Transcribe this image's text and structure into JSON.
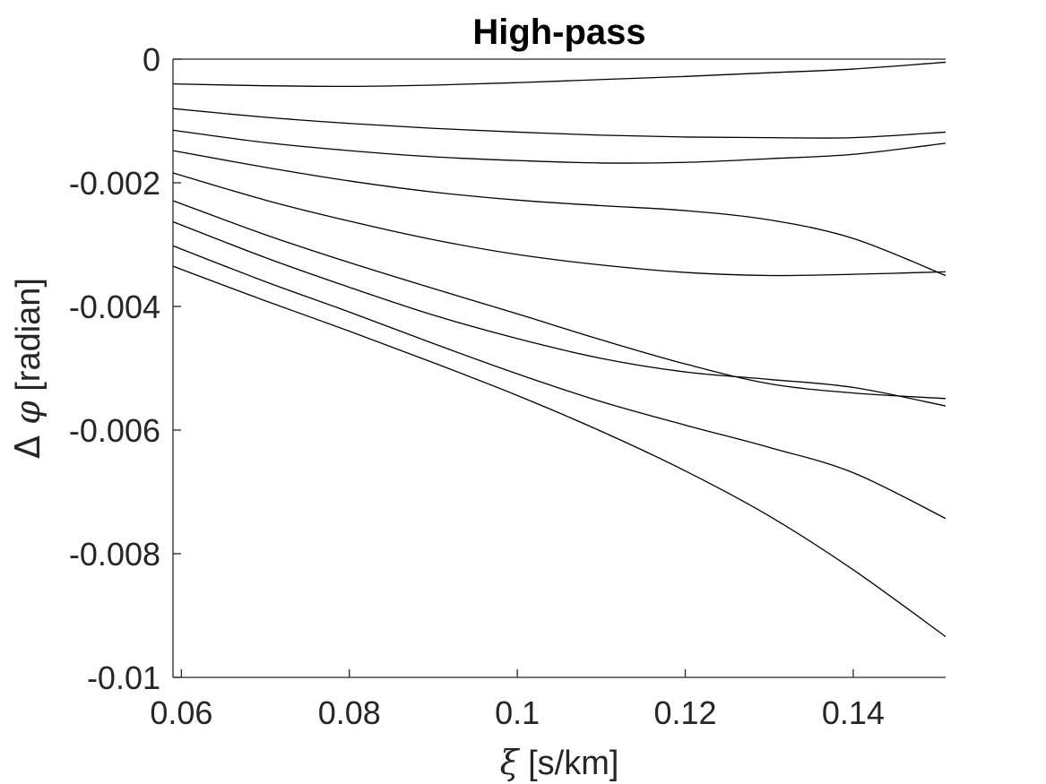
{
  "chart_data": {
    "type": "line",
    "title": "High-pass",
    "xlabel": {
      "symbol": "ξ",
      "unit": " [s/km]"
    },
    "ylabel": {
      "delta": "Δ ",
      "symbol": "φ",
      "unit": " [radian]"
    },
    "xlim": [
      0.059,
      0.151
    ],
    "ylim": [
      -0.01,
      0
    ],
    "xticks": [
      0.06,
      0.08,
      0.1,
      0.12,
      0.14
    ],
    "xtick_labels": [
      "0.06",
      "0.08",
      "0.1",
      "0.12",
      "0.14"
    ],
    "yticks": [
      0,
      -0.002,
      -0.004,
      -0.006,
      -0.008,
      -0.01
    ],
    "ytick_labels": [
      "0",
      "-0.002",
      "-0.004",
      "-0.006",
      "-0.008",
      "-0.01"
    ],
    "grid": false,
    "line_color": "#000000",
    "x": [
      0.059,
      0.07,
      0.08,
      0.09,
      0.1,
      0.11,
      0.12,
      0.13,
      0.14,
      0.151
    ],
    "series": [
      {
        "values": [
          -0.0004,
          -0.00043,
          -0.00044,
          -0.00042,
          -0.00038,
          -0.00033,
          -0.00028,
          -0.00022,
          -0.00016,
          -5e-05
        ]
      },
      {
        "values": [
          -0.0008,
          -0.00094,
          -0.00104,
          -0.00112,
          -0.00118,
          -0.00123,
          -0.00126,
          -0.00127,
          -0.00127,
          -0.00118
        ]
      },
      {
        "values": [
          -0.00115,
          -0.00135,
          -0.00148,
          -0.00158,
          -0.00164,
          -0.00168,
          -0.00167,
          -0.00161,
          -0.00154,
          -0.00136
        ]
      },
      {
        "values": [
          -0.00148,
          -0.00175,
          -0.00197,
          -0.00215,
          -0.00228,
          -0.00237,
          -0.00245,
          -0.0026,
          -0.0029,
          -0.0035
        ]
      },
      {
        "values": [
          -0.00184,
          -0.00228,
          -0.00262,
          -0.00292,
          -0.00316,
          -0.00333,
          -0.00345,
          -0.0035,
          -0.00348,
          -0.00344
        ]
      },
      {
        "values": [
          -0.00229,
          -0.00284,
          -0.00329,
          -0.00371,
          -0.00412,
          -0.00454,
          -0.00493,
          -0.00525,
          -0.0054,
          -0.00549
        ]
      },
      {
        "values": [
          -0.00263,
          -0.00321,
          -0.00369,
          -0.00414,
          -0.00452,
          -0.00484,
          -0.00506,
          -0.00518,
          -0.00531,
          -0.00561
        ]
      },
      {
        "values": [
          -0.00302,
          -0.0036,
          -0.00409,
          -0.0046,
          -0.00509,
          -0.00554,
          -0.00592,
          -0.00628,
          -0.00669,
          -0.00743
        ]
      },
      {
        "values": [
          -0.00335,
          -0.00391,
          -0.0044,
          -0.00491,
          -0.00544,
          -0.00602,
          -0.00666,
          -0.00739,
          -0.00826,
          -0.00934
        ]
      }
    ]
  }
}
